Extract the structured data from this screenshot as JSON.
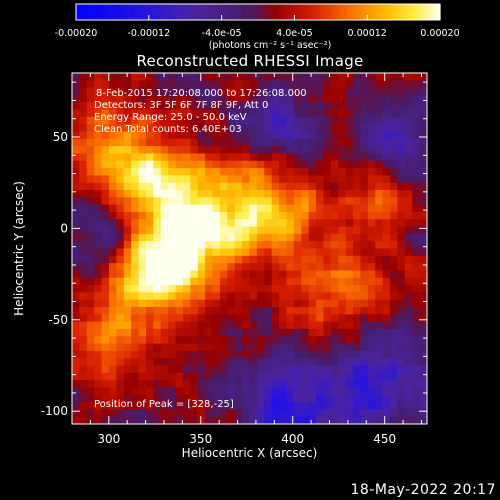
{
  "chart_data": {
    "type": "heatmap",
    "title": "Reconstructed RHESSI Image",
    "xlabel": "Heliocentric X (arcsec)",
    "ylabel": "Heliocentric Y (arcsec)",
    "xlim": [
      280,
      473
    ],
    "ylim": [
      -107,
      85
    ],
    "xticks": [
      "300",
      "350",
      "400",
      "450"
    ],
    "yticks": [
      "50",
      "0",
      "-50",
      "-100"
    ],
    "x_tick_values": [
      300,
      350,
      400,
      450
    ],
    "y_tick_values": [
      50,
      0,
      -50,
      -100
    ],
    "colorbar": {
      "colormap": "hot-with-blue-negatives",
      "range": [
        -0.0002,
        0.0002
      ],
      "tick_labels": [
        "-0.00020",
        "-0.00012",
        "-4.0e-05",
        "4.0e-05",
        "0.00012",
        "0.00020"
      ],
      "tick_values": [
        -0.0002,
        -0.00012,
        -4e-05,
        4e-05,
        0.00012,
        0.0002
      ],
      "units_label": "(photons cm⁻² s⁻¹ asec⁻²)"
    },
    "annotations": {
      "time_range": "8-Feb-2015 17:20:08.000 to 17:26:08.000",
      "detectors": "Detectors: 3F 5F 6F 7F 8F 9F, Att 0",
      "energy_range": "Energy Range: 25.0 - 50.0 keV",
      "method_counts": "Clean    Total counts: 6.40E+03",
      "peak_position": "Position of Peak = [328,-25]"
    },
    "peak": {
      "x": 328,
      "y": -25
    },
    "bright_features": [
      {
        "x": 328,
        "y": -22,
        "strength": 1.0,
        "spread": 16
      },
      {
        "x": 350,
        "y": 5,
        "strength": 0.85,
        "spread": 20
      },
      {
        "x": 322,
        "y": 25,
        "strength": 0.7,
        "spread": 14
      },
      {
        "x": 390,
        "y": 10,
        "strength": 0.6,
        "spread": 18
      },
      {
        "x": 425,
        "y": -35,
        "strength": 0.5,
        "spread": 20
      },
      {
        "x": 300,
        "y": 45,
        "strength": 0.45,
        "spread": 18
      },
      {
        "x": 300,
        "y": -60,
        "strength": 0.45,
        "spread": 18
      },
      {
        "x": 450,
        "y": 20,
        "strength": 0.4,
        "spread": 15
      }
    ],
    "dim_regions": [
      {
        "x": 445,
        "y": -85,
        "strength": 0.6,
        "spread": 22
      },
      {
        "x": 395,
        "y": -98,
        "strength": 0.55,
        "spread": 18
      },
      {
        "x": 455,
        "y": 45,
        "strength": 0.45,
        "spread": 16
      },
      {
        "x": 395,
        "y": 55,
        "strength": 0.4,
        "spread": 14
      },
      {
        "x": 300,
        "y": 0,
        "strength": 0.35,
        "spread": 14
      }
    ]
  },
  "footer": {
    "date": "18-May-2022 20:17"
  }
}
